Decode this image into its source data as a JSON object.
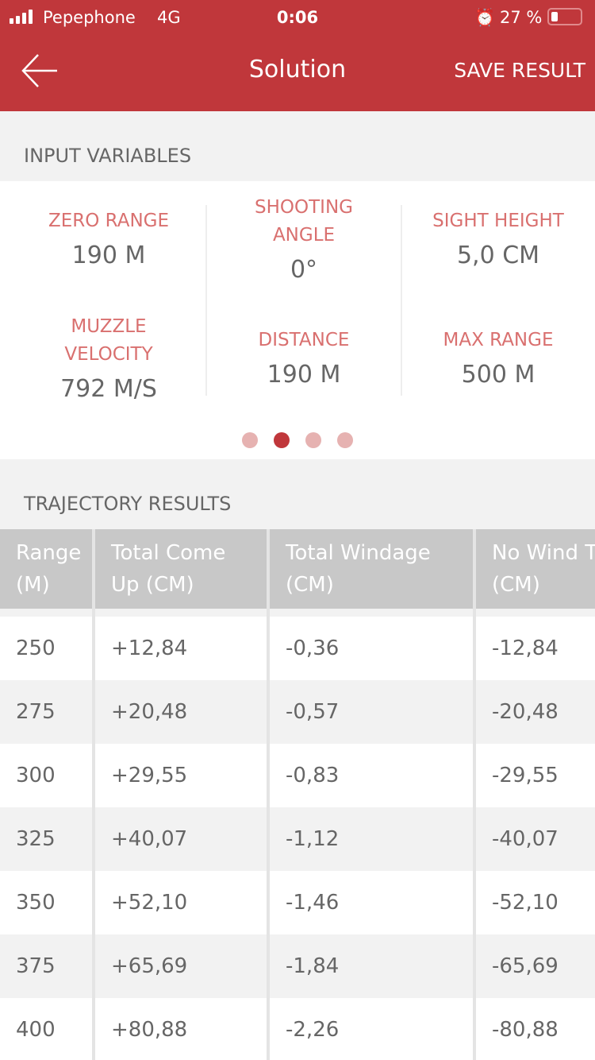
{
  "status": {
    "carrier": "Pepephone",
    "network": "4G",
    "time": "0:06",
    "battery": "27 %",
    "icons": [
      "signal-icon",
      "alarm-icon",
      "battery-icon"
    ]
  },
  "nav": {
    "title": "Solution",
    "save": "SAVE RESULT",
    "back_icon": "arrow-left-icon"
  },
  "colors": {
    "accent": "#c0373b",
    "label": "#d9706f"
  },
  "inputs": {
    "title": "INPUT VARIABLES",
    "items": [
      {
        "label": "ZERO RANGE",
        "value": "190 M"
      },
      {
        "label": "SHOOTING ANGLE",
        "value": "0°"
      },
      {
        "label": "SIGHT HEIGHT",
        "value": "5,0 CM"
      },
      {
        "label": "MUZZLE VELOCITY",
        "value": "792 M/S"
      },
      {
        "label": "DISTANCE",
        "value": "190 M"
      },
      {
        "label": "MAX RANGE",
        "value": "500 M"
      }
    ],
    "pager": {
      "pages": 4,
      "current": 2
    }
  },
  "results": {
    "title": "TRAJECTORY RESULTS",
    "headers": [
      [
        "Range",
        "(M)"
      ],
      [
        "Total Come",
        "Up (CM)"
      ],
      [
        "Total Windage",
        "(CM)"
      ],
      [
        "No Wind T",
        "(CM)"
      ]
    ],
    "rows": [
      [
        "250",
        "+12,84",
        "-0,36",
        "-12,84"
      ],
      [
        "275",
        "+20,48",
        "-0,57",
        "-20,48"
      ],
      [
        "300",
        "+29,55",
        "-0,83",
        "-29,55"
      ],
      [
        "325",
        "+40,07",
        "-1,12",
        "-40,07"
      ],
      [
        "350",
        "+52,10",
        "-1,46",
        "-52,10"
      ],
      [
        "375",
        "+65,69",
        "-1,84",
        "-65,69"
      ],
      [
        "400",
        "+80,88",
        "-2,26",
        "-80,88"
      ]
    ]
  }
}
